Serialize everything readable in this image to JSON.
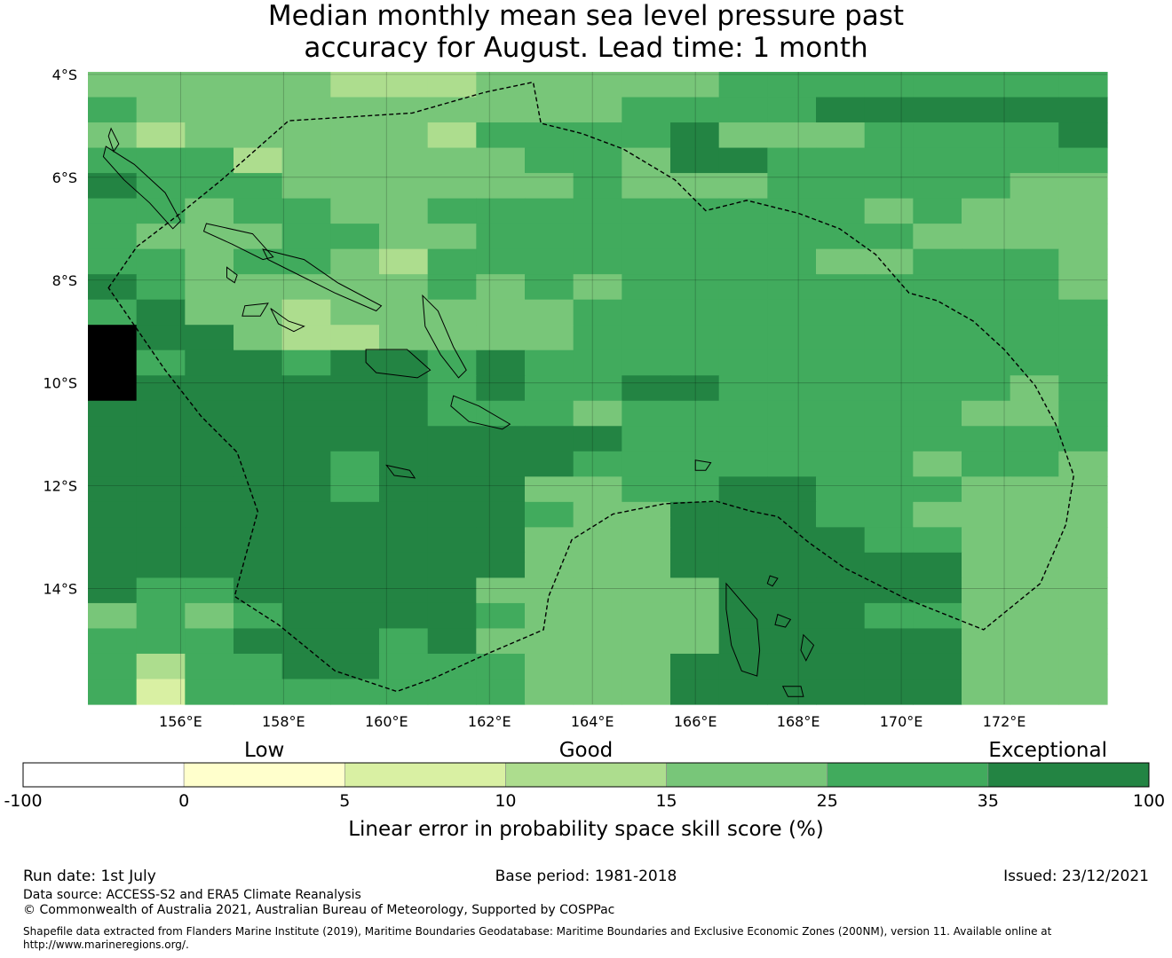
{
  "title_line1": "Median monthly mean sea level pressure past",
  "title_line2": "accuracy for August. Lead time: 1 month",
  "map": {
    "lon_range": [
      154.2,
      174.0
    ],
    "lat_range": [
      -16.25,
      -3.95
    ],
    "lat_ticks": [
      {
        "value": -4,
        "label": "4°S"
      },
      {
        "value": -6,
        "label": "6°S"
      },
      {
        "value": -8,
        "label": "8°S"
      },
      {
        "value": -10,
        "label": "10°S"
      },
      {
        "value": -12,
        "label": "12°S"
      },
      {
        "value": -14,
        "label": "14°S"
      }
    ],
    "lon_ticks": [
      {
        "value": 156,
        "label": "156°E"
      },
      {
        "value": 158,
        "label": "158°E"
      },
      {
        "value": 160,
        "label": "160°E"
      },
      {
        "value": 162,
        "label": "162°E"
      },
      {
        "value": 164,
        "label": "164°E"
      },
      {
        "value": 166,
        "label": "166°E"
      },
      {
        "value": 168,
        "label": "168°E"
      },
      {
        "value": 170,
        "label": "170°E"
      },
      {
        "value": 172,
        "label": "172°E"
      }
    ],
    "cell_size_deg": 0.833,
    "grid_rows": [
      "444443334444455555555",
      "544444444445555666666",
      "434444435555644455556",
      "555344444554665555555",
      "655544444454445555544",
      "554554455555555545444",
      "544455445555555554444",
      "554554355555555445554",
      "654444454545555555554",
      "564434444455555555555",
      "766433444455555555555",
      "756656656555555555555",
      "766666656556655555545",
      "666666655545555555445",
      "666666666665555555555",
      "666665666655555554554",
      "666665666445566555444",
      "666666666544666554444",
      "666666666444666655444",
      "666666666444666666444",
      "655666664444466666444",
      "454566665444466655444",
      "555666564444466666444",
      "535566555444666666444",
      "525555555444666666444"
    ],
    "eez_boundary": [
      [
        154.6,
        -8.15
      ],
      [
        155.15,
        -7.35
      ],
      [
        156,
        -6.7
      ],
      [
        156.8,
        -6.05
      ],
      [
        158.1,
        -4.9
      ],
      [
        160.5,
        -4.75
      ],
      [
        161.9,
        -4.35
      ],
      [
        162.85,
        -4.15
      ],
      [
        163,
        -4.95
      ],
      [
        163.8,
        -5.15
      ],
      [
        164.6,
        -5.45
      ],
      [
        165.6,
        -6.05
      ],
      [
        166.2,
        -6.65
      ],
      [
        167,
        -6.45
      ],
      [
        168,
        -6.7
      ],
      [
        168.8,
        -7
      ],
      [
        169.5,
        -7.5
      ],
      [
        170.15,
        -8.25
      ],
      [
        170.7,
        -8.4
      ],
      [
        171.4,
        -8.8
      ],
      [
        172,
        -9.35
      ],
      [
        172.6,
        -10.05
      ],
      [
        173,
        -10.8
      ],
      [
        173.35,
        -11.8
      ],
      [
        173.2,
        -12.75
      ],
      [
        172.7,
        -13.9
      ],
      [
        171.6,
        -14.8
      ],
      [
        170.1,
        -14.2
      ],
      [
        168.9,
        -13.6
      ],
      [
        168.2,
        -13.1
      ],
      [
        167.6,
        -12.6
      ],
      [
        167.1,
        -12.5
      ],
      [
        166.4,
        -12.3
      ],
      [
        165.4,
        -12.35
      ],
      [
        164.4,
        -12.55
      ],
      [
        163.6,
        -13.05
      ],
      [
        163.15,
        -14.15
      ],
      [
        163.05,
        -14.8
      ],
      [
        162,
        -15.25
      ],
      [
        160.9,
        -15.75
      ],
      [
        160.2,
        -16
      ],
      [
        159,
        -15.6
      ],
      [
        157.9,
        -14.7
      ],
      [
        157.05,
        -14.15
      ],
      [
        157.5,
        -12.5
      ],
      [
        157.1,
        -11.35
      ],
      [
        156.4,
        -10.65
      ],
      [
        155.7,
        -9.75
      ]
    ],
    "islands": [
      [
        [
          154.55,
          -5.4
        ],
        [
          155.1,
          -5.75
        ],
        [
          155.7,
          -6.3
        ],
        [
          156,
          -6.85
        ],
        [
          155.85,
          -7
        ],
        [
          155.4,
          -6.5
        ],
        [
          154.9,
          -6.05
        ],
        [
          154.5,
          -5.6
        ]
      ],
      [
        [
          154.65,
          -5.05
        ],
        [
          154.8,
          -5.35
        ],
        [
          154.7,
          -5.5
        ],
        [
          154.6,
          -5.2
        ]
      ],
      [
        [
          156.5,
          -6.9
        ],
        [
          157.4,
          -7.1
        ],
        [
          157.8,
          -7.55
        ],
        [
          157.6,
          -7.6
        ],
        [
          157,
          -7.3
        ],
        [
          156.45,
          -7.05
        ]
      ],
      [
        [
          157.6,
          -7.4
        ],
        [
          158.4,
          -7.6
        ],
        [
          159.05,
          -8.05
        ],
        [
          159.9,
          -8.5
        ],
        [
          159.8,
          -8.6
        ],
        [
          159,
          -8.25
        ],
        [
          158.3,
          -7.9
        ],
        [
          157.7,
          -7.6
        ]
      ],
      [
        [
          160.7,
          -8.3
        ],
        [
          161,
          -8.6
        ],
        [
          161.3,
          -9.3
        ],
        [
          161.55,
          -9.75
        ],
        [
          161.4,
          -9.9
        ],
        [
          161.05,
          -9.45
        ],
        [
          160.75,
          -8.9
        ]
      ],
      [
        [
          159.6,
          -9.35
        ],
        [
          160.4,
          -9.35
        ],
        [
          160.85,
          -9.75
        ],
        [
          160.6,
          -9.9
        ],
        [
          159.8,
          -9.8
        ],
        [
          159.6,
          -9.6
        ]
      ],
      [
        [
          161.3,
          -10.25
        ],
        [
          161.8,
          -10.45
        ],
        [
          162.4,
          -10.8
        ],
        [
          162.25,
          -10.9
        ],
        [
          161.6,
          -10.75
        ],
        [
          161.25,
          -10.45
        ]
      ],
      [
        [
          157.25,
          -8.5
        ],
        [
          157.7,
          -8.45
        ],
        [
          157.55,
          -8.7
        ],
        [
          157.2,
          -8.7
        ]
      ],
      [
        [
          157.75,
          -8.55
        ],
        [
          158.1,
          -8.8
        ],
        [
          158.4,
          -8.9
        ],
        [
          158.2,
          -9
        ],
        [
          157.9,
          -8.85
        ]
      ],
      [
        [
          156.9,
          -7.75
        ],
        [
          157.1,
          -7.9
        ],
        [
          157.05,
          -8.05
        ],
        [
          156.9,
          -7.95
        ]
      ],
      [
        [
          166.6,
          -13.9
        ],
        [
          167.2,
          -14.6
        ],
        [
          167.25,
          -15.2
        ],
        [
          167.2,
          -15.7
        ],
        [
          166.9,
          -15.6
        ],
        [
          166.7,
          -15.1
        ],
        [
          166.6,
          -14.4
        ]
      ],
      [
        [
          167.7,
          -15.9
        ],
        [
          168.05,
          -15.9
        ],
        [
          168.1,
          -16.1
        ],
        [
          167.8,
          -16.1
        ]
      ],
      [
        [
          168.1,
          -14.9
        ],
        [
          168.3,
          -15.1
        ],
        [
          168.15,
          -15.4
        ],
        [
          168.05,
          -15.2
        ]
      ],
      [
        [
          167.6,
          -14.5
        ],
        [
          167.85,
          -14.6
        ],
        [
          167.75,
          -14.75
        ],
        [
          167.55,
          -14.7
        ]
      ],
      [
        [
          166.0,
          -11.5
        ],
        [
          166.3,
          -11.55
        ],
        [
          166.2,
          -11.7
        ],
        [
          166.0,
          -11.7
        ]
      ],
      [
        [
          160.0,
          -11.6
        ],
        [
          160.45,
          -11.7
        ],
        [
          160.55,
          -11.85
        ],
        [
          160.15,
          -11.8
        ]
      ],
      [
        [
          167.45,
          -13.75
        ],
        [
          167.6,
          -13.8
        ],
        [
          167.5,
          -13.95
        ],
        [
          167.4,
          -13.9
        ]
      ]
    ]
  },
  "colorbar": {
    "band_labels": [
      "Low",
      "Good",
      "Exceptional"
    ],
    "ticks": [
      "-100",
      "0",
      "5",
      "10",
      "15",
      "25",
      "35",
      "100"
    ],
    "colors": [
      "#ffffff",
      "#ffffcc",
      "#d9f0a3",
      "#addd8e",
      "#78c679",
      "#41ab5d",
      "#238443"
    ],
    "label": "Linear error in probability space skill score (%)"
  },
  "footer": {
    "run_date": "Run date: 1st July",
    "base_period": "Base period: 1981-2018",
    "issued": "Issued: 23/12/2021",
    "data_source": "Data source: ACCESS-S2 and ERA5 Climate Reanalysis",
    "copyright": "© Commonwealth of Australia 2021, Australian Bureau of Meteorology, Supported by COSPPac",
    "shapefile_line1": "Shapefile data extracted from Flanders Marine Institute (2019), Maritime Boundaries Geodatabase: Maritime Boundaries and Exclusive Economic Zones (200NM), version 11. Available online at",
    "shapefile_line2": "http://www.marineregions.org/."
  }
}
